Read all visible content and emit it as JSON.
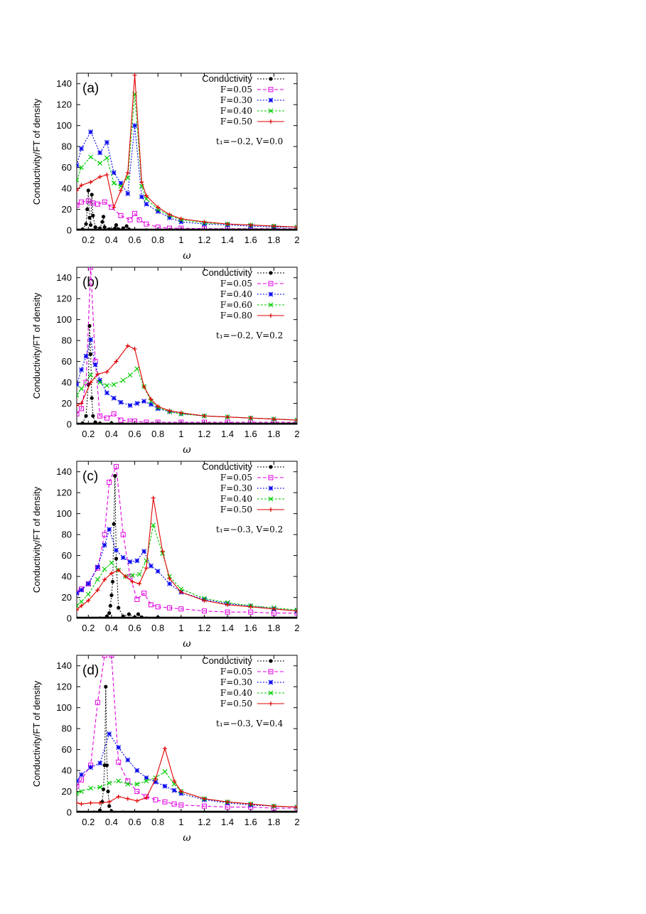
{
  "chart_data": [
    {
      "type": "line",
      "panel_label": "(a)",
      "ylabel": "Conductivity/FT of density",
      "xlabel": "ω",
      "xlim": [
        0.1,
        2.0
      ],
      "ylim": [
        0,
        150
      ],
      "xticks": [
        "0.2",
        "0.4",
        "0.6",
        "0.8",
        "1",
        "1.2",
        "1.4",
        "1.6",
        "1.8",
        "2"
      ],
      "yticks": [
        "0",
        "20",
        "40",
        "60",
        "80",
        "100",
        "120",
        "140"
      ],
      "legend_position": "top-right",
      "annotation": "t₁=−0.2, V=0.0",
      "series": [
        {
          "name": "Conductivity",
          "color": "#000000",
          "marker": "dot",
          "x": [
            0.1,
            0.15,
            0.18,
            0.19,
            0.2,
            0.21,
            0.22,
            0.23,
            0.24,
            0.26,
            0.3,
            0.32,
            0.33,
            0.34,
            0.38,
            0.43,
            0.44,
            0.46,
            0.5,
            0.53,
            0.55,
            0.6,
            0.7,
            0.8,
            0.9,
            1.0,
            1.2,
            1.4,
            1.6,
            1.8,
            2.0
          ],
          "y": [
            0,
            1,
            6,
            20,
            38,
            12,
            5,
            34,
            14,
            3,
            2,
            8,
            13,
            3,
            1,
            2,
            5,
            1,
            2,
            4,
            1,
            0,
            0,
            0,
            0,
            0,
            0,
            0,
            0,
            0,
            0
          ]
        },
        {
          "name": "F=0.05",
          "color": "#e000e0",
          "marker": "open-square",
          "x": [
            0.1,
            0.14,
            0.2,
            0.24,
            0.28,
            0.34,
            0.4,
            0.48,
            0.56,
            0.6,
            0.64,
            0.7,
            0.8,
            0.9,
            1.0,
            1.2,
            1.4,
            1.6,
            1.8,
            2.0
          ],
          "y": [
            24,
            27,
            28,
            26,
            25,
            27,
            22,
            14,
            10,
            16,
            10,
            6,
            3,
            2,
            2,
            1.5,
            1.5,
            1.5,
            1.5,
            1.5
          ]
        },
        {
          "name": "F=0.30",
          "color": "#0000ee",
          "marker": "star",
          "x": [
            0.1,
            0.14,
            0.22,
            0.3,
            0.36,
            0.42,
            0.48,
            0.54,
            0.6,
            0.66,
            0.7,
            0.8,
            0.9,
            1.0,
            1.2,
            1.4,
            1.6,
            1.8,
            2.0
          ],
          "y": [
            62,
            78,
            94,
            74,
            84,
            55,
            45,
            35,
            100,
            32,
            25,
            18,
            12,
            8,
            6,
            5,
            4,
            3,
            3
          ]
        },
        {
          "name": "F=0.40",
          "color": "#00cc00",
          "marker": "cross",
          "x": [
            0.1,
            0.14,
            0.22,
            0.3,
            0.36,
            0.42,
            0.48,
            0.54,
            0.6,
            0.66,
            0.7,
            0.8,
            0.9,
            1.0,
            1.2,
            1.4,
            1.6,
            1.8,
            2.0
          ],
          "y": [
            48,
            60,
            70,
            64,
            69,
            45,
            42,
            50,
            130,
            42,
            30,
            20,
            14,
            10,
            7,
            6,
            5,
            4,
            3
          ]
        },
        {
          "name": "F=0.50",
          "color": "#e00000",
          "marker": "plus",
          "x": [
            0.1,
            0.14,
            0.22,
            0.3,
            0.36,
            0.42,
            0.48,
            0.54,
            0.6,
            0.66,
            0.7,
            0.8,
            0.9,
            1.0,
            1.2,
            1.4,
            1.6,
            1.8,
            2.0
          ],
          "y": [
            38,
            43,
            46,
            51,
            53,
            22,
            38,
            55,
            148,
            46,
            33,
            22,
            15,
            11,
            8,
            6,
            5,
            4,
            3
          ]
        }
      ]
    },
    {
      "type": "line",
      "panel_label": "(b)",
      "ylabel": "Conductivity/FT of density",
      "xlabel": "ω",
      "xlim": [
        0.1,
        2.0
      ],
      "ylim": [
        0,
        150
      ],
      "xticks": [
        "0.2",
        "0.4",
        "0.6",
        "0.8",
        "1",
        "1.2",
        "1.4",
        "1.6",
        "1.8",
        "2"
      ],
      "yticks": [
        "0",
        "20",
        "40",
        "60",
        "80",
        "100",
        "120",
        "140"
      ],
      "legend_position": "top-right",
      "annotation": "t₁=−0.2, V=0.2",
      "series": [
        {
          "name": "Conductivity",
          "color": "#000000",
          "marker": "dot",
          "x": [
            0.1,
            0.15,
            0.18,
            0.2,
            0.21,
            0.22,
            0.23,
            0.24,
            0.26,
            0.3,
            0.4,
            0.5,
            0.6,
            0.8,
            1.0,
            1.2,
            1.4,
            1.6,
            1.8,
            2.0
          ],
          "y": [
            0,
            1,
            8,
            38,
            94,
            67,
            25,
            8,
            2,
            1,
            1,
            0,
            0,
            0,
            0,
            0,
            0,
            0,
            0,
            0
          ]
        },
        {
          "name": "F=0.05",
          "color": "#e000e0",
          "marker": "open-square",
          "x": [
            0.1,
            0.14,
            0.18,
            0.22,
            0.26,
            0.3,
            0.36,
            0.42,
            0.48,
            0.56,
            0.6,
            0.7,
            0.8,
            1.0,
            1.2,
            1.4,
            1.6,
            1.8,
            2.0
          ],
          "y": [
            10,
            15,
            40,
            150,
            60,
            8,
            6,
            10,
            4,
            3,
            3,
            2,
            2,
            2,
            2,
            2,
            2,
            2,
            2
          ]
        },
        {
          "name": "F=0.40",
          "color": "#0000ee",
          "marker": "star",
          "x": [
            0.1,
            0.14,
            0.18,
            0.22,
            0.26,
            0.3,
            0.36,
            0.42,
            0.48,
            0.56,
            0.62,
            0.68,
            0.74,
            0.8,
            0.9,
            1.0,
            1.2,
            1.4,
            1.6,
            1.8,
            2.0
          ],
          "y": [
            38,
            52,
            65,
            81,
            57,
            42,
            30,
            25,
            21,
            18,
            20,
            22,
            19,
            15,
            12,
            10,
            8,
            7,
            6,
            5,
            4
          ]
        },
        {
          "name": "F=0.60",
          "color": "#00cc00",
          "marker": "cross",
          "x": [
            0.1,
            0.14,
            0.22,
            0.3,
            0.36,
            0.42,
            0.5,
            0.56,
            0.62,
            0.68,
            0.74,
            0.8,
            0.9,
            1.0,
            1.2,
            1.4,
            1.6,
            1.8,
            2.0
          ],
          "y": [
            28,
            34,
            47,
            40,
            37,
            38,
            42,
            47,
            53,
            36,
            22,
            16,
            12,
            10,
            8,
            7,
            6,
            5,
            4
          ]
        },
        {
          "name": "F=0.80",
          "color": "#e00000",
          "marker": "plus",
          "x": [
            0.1,
            0.14,
            0.22,
            0.28,
            0.36,
            0.44,
            0.54,
            0.6,
            0.68,
            0.74,
            0.8,
            0.9,
            1.0,
            1.2,
            1.4,
            1.6,
            1.8,
            2.0
          ],
          "y": [
            18,
            20,
            40,
            48,
            50,
            60,
            75,
            72,
            36,
            24,
            17,
            13,
            11,
            8,
            7,
            6,
            5,
            4
          ]
        }
      ]
    },
    {
      "type": "line",
      "panel_label": "(c)",
      "ylabel": "Conductivity/FT of density",
      "xlabel": "ω",
      "xlim": [
        0.1,
        2.0
      ],
      "ylim": [
        0,
        150
      ],
      "xticks": [
        "0.2",
        "0.4",
        "0.6",
        "0.8",
        "1",
        "1.2",
        "1.4",
        "1.6",
        "1.8",
        "2"
      ],
      "yticks": [
        "0",
        "20",
        "40",
        "60",
        "80",
        "100",
        "120",
        "140"
      ],
      "legend_position": "top-right",
      "annotation": "t₁=−0.3, V=0.2",
      "series": [
        {
          "name": "Conductivity",
          "color": "#000000",
          "marker": "dot",
          "x": [
            0.1,
            0.3,
            0.36,
            0.38,
            0.39,
            0.4,
            0.41,
            0.42,
            0.43,
            0.44,
            0.46,
            0.5,
            0.55,
            0.6,
            0.63,
            0.66,
            0.7,
            0.8,
            1.0,
            1.2,
            1.4,
            1.6,
            1.8,
            2.0
          ],
          "y": [
            0,
            0,
            2,
            5,
            12,
            22,
            35,
            90,
            136,
            57,
            10,
            2,
            4,
            1,
            4,
            1,
            0,
            1,
            0,
            0,
            0,
            0,
            0,
            0
          ]
        },
        {
          "name": "F=0.05",
          "color": "#e000e0",
          "marker": "open-square",
          "x": [
            0.1,
            0.14,
            0.2,
            0.28,
            0.34,
            0.38,
            0.44,
            0.5,
            0.56,
            0.62,
            0.68,
            0.74,
            0.8,
            0.9,
            1.0,
            1.2,
            1.4,
            1.6,
            1.8,
            2.0
          ],
          "y": [
            25,
            28,
            33,
            48,
            80,
            130,
            145,
            80,
            40,
            18,
            24,
            13,
            11,
            10,
            9,
            7,
            6,
            6,
            5,
            5
          ]
        },
        {
          "name": "F=0.30",
          "color": "#0000ee",
          "marker": "star",
          "x": [
            0.1,
            0.14,
            0.2,
            0.28,
            0.34,
            0.38,
            0.44,
            0.5,
            0.56,
            0.62,
            0.68,
            0.74,
            0.8,
            0.9,
            1.0,
            1.2,
            1.4,
            1.6,
            1.8,
            2.0
          ],
          "y": [
            24,
            27,
            33,
            49,
            70,
            85,
            65,
            58,
            54,
            55,
            64,
            50,
            45,
            33,
            25,
            18,
            14,
            12,
            9,
            7
          ]
        },
        {
          "name": "F=0.40",
          "color": "#00cc00",
          "marker": "cross",
          "x": [
            0.1,
            0.14,
            0.2,
            0.28,
            0.34,
            0.4,
            0.46,
            0.52,
            0.58,
            0.64,
            0.7,
            0.76,
            0.84,
            0.9,
            1.0,
            1.2,
            1.4,
            1.6,
            1.8,
            2.0
          ],
          "y": [
            12,
            16,
            23,
            37,
            47,
            53,
            46,
            40,
            41,
            42,
            55,
            89,
            62,
            40,
            28,
            19,
            15,
            12,
            10,
            8
          ]
        },
        {
          "name": "F=0.50",
          "color": "#e00000",
          "marker": "plus",
          "x": [
            0.1,
            0.14,
            0.2,
            0.28,
            0.34,
            0.4,
            0.46,
            0.52,
            0.58,
            0.64,
            0.7,
            0.76,
            0.84,
            0.9,
            1.0,
            1.2,
            1.4,
            1.6,
            1.8,
            2.0
          ],
          "y": [
            8,
            12,
            17,
            27,
            37,
            43,
            46,
            40,
            35,
            33,
            48,
            115,
            64,
            38,
            25,
            17,
            13,
            11,
            9,
            7
          ]
        }
      ]
    },
    {
      "type": "line",
      "panel_label": "(d)",
      "ylabel": "Conductivity/FT of density",
      "xlabel": "ω",
      "xlim": [
        0.1,
        2.0
      ],
      "ylim": [
        0,
        150
      ],
      "xticks": [
        "0.2",
        "0.4",
        "0.6",
        "0.8",
        "1",
        "1.2",
        "1.4",
        "1.6",
        "1.8",
        "2"
      ],
      "yticks": [
        "0",
        "20",
        "40",
        "60",
        "80",
        "100",
        "120",
        "140"
      ],
      "legend_position": "top-right",
      "annotation": "t₁=−0.3, V=0.4",
      "series": [
        {
          "name": "Conductivity",
          "color": "#000000",
          "marker": "dot",
          "x": [
            0.1,
            0.25,
            0.3,
            0.32,
            0.33,
            0.34,
            0.35,
            0.36,
            0.37,
            0.38,
            0.4,
            0.5,
            0.6,
            0.8,
            1.0,
            1.2,
            1.4,
            1.6,
            1.8,
            2.0
          ],
          "y": [
            0,
            0,
            2,
            10,
            22,
            45,
            120,
            45,
            20,
            6,
            1,
            0,
            0,
            0,
            0,
            0,
            0,
            0,
            0,
            0
          ]
        },
        {
          "name": "F=0.05",
          "color": "#e000e0",
          "marker": "open-square",
          "x": [
            0.1,
            0.14,
            0.22,
            0.28,
            0.34,
            0.4,
            0.46,
            0.54,
            0.62,
            0.7,
            0.78,
            0.86,
            0.94,
            1.0,
            1.2,
            1.4,
            1.6,
            1.8,
            2.0
          ],
          "y": [
            25,
            31,
            45,
            105,
            150,
            150,
            48,
            30,
            20,
            15,
            12,
            10,
            8,
            7,
            6,
            5,
            5,
            4,
            4
          ]
        },
        {
          "name": "F=0.30",
          "color": "#0000ee",
          "marker": "star",
          "x": [
            0.1,
            0.14,
            0.22,
            0.3,
            0.38,
            0.46,
            0.54,
            0.62,
            0.7,
            0.78,
            0.86,
            0.94,
            1.0,
            1.2,
            1.4,
            1.6,
            1.8,
            2.0
          ],
          "y": [
            30,
            36,
            43,
            47,
            75,
            62,
            50,
            40,
            33,
            29,
            25,
            21,
            18,
            12,
            9,
            7,
            6,
            5
          ]
        },
        {
          "name": "F=0.40",
          "color": "#00cc00",
          "marker": "cross",
          "x": [
            0.1,
            0.14,
            0.22,
            0.3,
            0.38,
            0.46,
            0.54,
            0.62,
            0.7,
            0.78,
            0.86,
            0.94,
            1.0,
            1.2,
            1.4,
            1.6,
            1.8,
            2.0
          ],
          "y": [
            18,
            20,
            23,
            24,
            28,
            30,
            27,
            27,
            30,
            33,
            39,
            27,
            20,
            13,
            10,
            8,
            6,
            5
          ]
        },
        {
          "name": "F=0.50",
          "color": "#e00000",
          "marker": "plus",
          "x": [
            0.1,
            0.14,
            0.22,
            0.3,
            0.38,
            0.46,
            0.54,
            0.62,
            0.7,
            0.78,
            0.86,
            0.94,
            1.0,
            1.2,
            1.4,
            1.6,
            1.8,
            2.0
          ],
          "y": [
            9,
            8,
            9,
            9,
            10,
            15,
            13,
            11,
            14,
            32,
            61,
            30,
            20,
            13,
            10,
            8,
            6,
            5
          ]
        }
      ]
    }
  ]
}
